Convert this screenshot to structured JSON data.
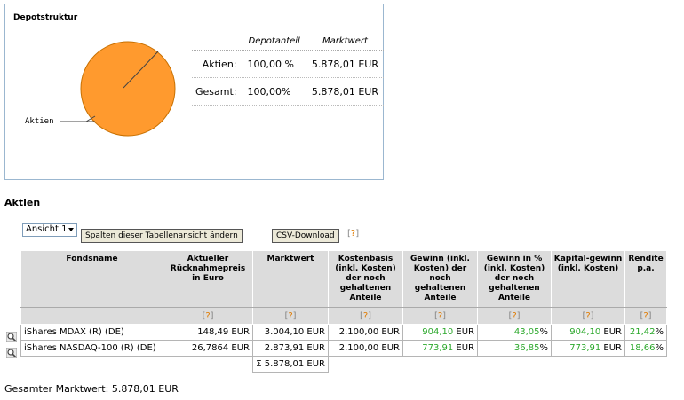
{
  "depotstruktur": {
    "title": "Depotstruktur",
    "pie_label": "Aktien",
    "pie_color": "#ff9a2e",
    "headers": [
      "Depotanteil",
      "Marktwert"
    ],
    "rows": [
      {
        "label": "Aktien:",
        "share": "100,00 %",
        "value": "5.878,01 EUR"
      },
      {
        "label": "Gesamt:",
        "share": "100,00%",
        "value": "5.878,01 EUR"
      }
    ]
  },
  "section_title": "Aktien",
  "view_select": {
    "value": "Ansicht 1"
  },
  "buttons": {
    "change_columns": "Spalten dieser Tabellenansicht ändern",
    "csv": "CSV-Download"
  },
  "help_mark": "?",
  "table": {
    "columns": [
      "Fondsname",
      "Aktueller Rücknahmepreis in Euro",
      "Marktwert",
      "Kostenbasis (inkl. Kosten) der noch gehaltenen Anteile",
      "Gewinn (inkl. Kosten) der noch gehaltenen Anteile",
      "Gewinn in % (inkl. Kosten) der noch gehaltenen Anteile",
      "Kapital-gewinn (inkl. Kosten)",
      "Rendite p.a."
    ],
    "rows": [
      {
        "name": "iShares MDAX (R) (DE)",
        "price": "148,49 EUR",
        "market": "3.004,10 EUR",
        "cost": "2.100,00 EUR",
        "gain_num": "904,10",
        "gain_unit": " EUR",
        "gain_pct_num": "43,05",
        "gain_pct_unit": "%",
        "capgain_num": "904,10",
        "capgain_unit": " EUR",
        "rendite_num": "21,42",
        "rendite_unit": "%"
      },
      {
        "name": "iShares NASDAQ-100 (R) (DE)",
        "price": "26,7864 EUR",
        "market": "2.873,91 EUR",
        "cost": "2.100,00 EUR",
        "gain_num": "773,91",
        "gain_unit": " EUR",
        "gain_pct_num": "36,85",
        "gain_pct_unit": "%",
        "capgain_num": "773,91",
        "capgain_unit": " EUR",
        "rendite_num": "18,66",
        "rendite_unit": "%"
      }
    ],
    "sum": "Σ 5.878,01 EUR"
  },
  "total_label": "Gesamter Marktwert: 5.878,01 EUR"
}
